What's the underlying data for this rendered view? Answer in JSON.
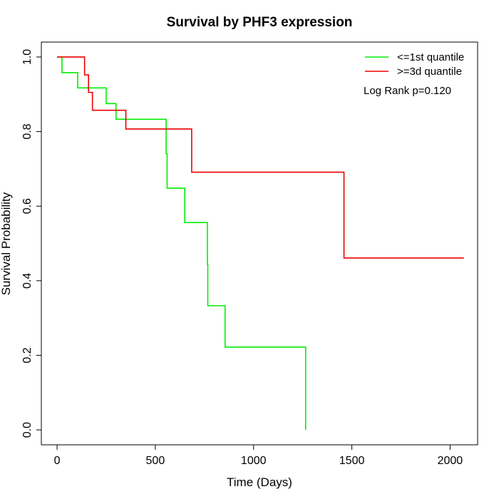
{
  "chart_data": {
    "type": "line",
    "title": "Survival by PHF3 expression",
    "xlabel": "Time (Days)",
    "ylabel": "Survival Probability",
    "xlim": [
      -80,
      2140
    ],
    "ylim": [
      -0.04,
      1.04
    ],
    "x_ticks": [
      0,
      500,
      1000,
      1500,
      2000
    ],
    "x_tick_labels": [
      "0",
      "500",
      "1000",
      "1500",
      "2000"
    ],
    "y_ticks": [
      0.0,
      0.2,
      0.4,
      0.6,
      0.8,
      1.0
    ],
    "y_tick_labels": [
      "0.0",
      "0.2",
      "0.4",
      "0.6",
      "0.8",
      "1.0"
    ],
    "legend_position": "top-right",
    "annotation": "Log Rank p=0.120",
    "series": [
      {
        "name": "<=1st quantile",
        "color": "#00ee00",
        "step_points": [
          [
            0,
            1.0
          ],
          [
            25,
            0.958
          ],
          [
            105,
            0.917
          ],
          [
            250,
            0.875
          ],
          [
            300,
            0.833
          ],
          [
            555,
            0.741
          ],
          [
            560,
            0.648
          ],
          [
            650,
            0.556
          ],
          [
            765,
            0.444
          ],
          [
            767,
            0.333
          ],
          [
            855,
            0.222
          ],
          [
            1265,
            0.0
          ]
        ]
      },
      {
        "name": ">=3d quantile",
        "color": "#ee0000",
        "step_points": [
          [
            0,
            1.0
          ],
          [
            140,
            0.952
          ],
          [
            160,
            0.905
          ],
          [
            180,
            0.857
          ],
          [
            350,
            0.807
          ],
          [
            685,
            0.691
          ],
          [
            1460,
            0.461
          ],
          [
            2070,
            0.461
          ]
        ]
      }
    ]
  }
}
